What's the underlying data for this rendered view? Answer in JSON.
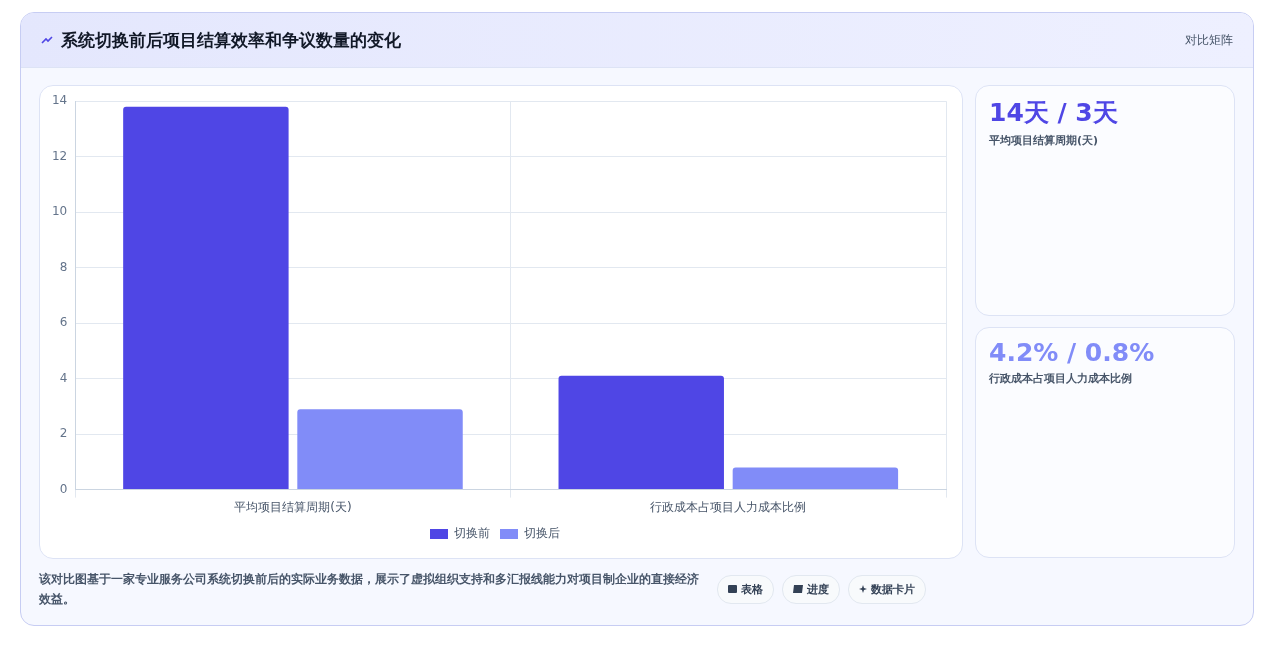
{
  "chart_data": {
    "type": "bar",
    "title": "系统切换前后项目结算效率和争议数量的变化",
    "categories": [
      "平均项目结算周期(天)",
      "行政成本占项目人力成本比例"
    ],
    "series": [
      {
        "name": "切换前",
        "color": "#4f46e5",
        "values": [
          13.8,
          4.1
        ]
      },
      {
        "name": "切换后",
        "color": "#818cf8",
        "values": [
          2.9,
          0.8
        ]
      }
    ],
    "ylim": [
      0,
      14
    ],
    "yticks": [
      0,
      2,
      4,
      6,
      8,
      10,
      12,
      14
    ],
    "grid": true,
    "legend": "bottom",
    "annotations": [
      "对比矩阵",
      "14天 / 3天",
      "平均项目结算周期(天)",
      "4.2% / 0.8%",
      "行政成本占项目人力成本比例",
      "该对比图基于一家专业服务公司系统切换前后的实际业务数据，展示了虚拟组织支持和多汇报线能力对项目制企业的直接经济效益。",
      "表格",
      "进度",
      "数据卡片"
    ]
  }
}
